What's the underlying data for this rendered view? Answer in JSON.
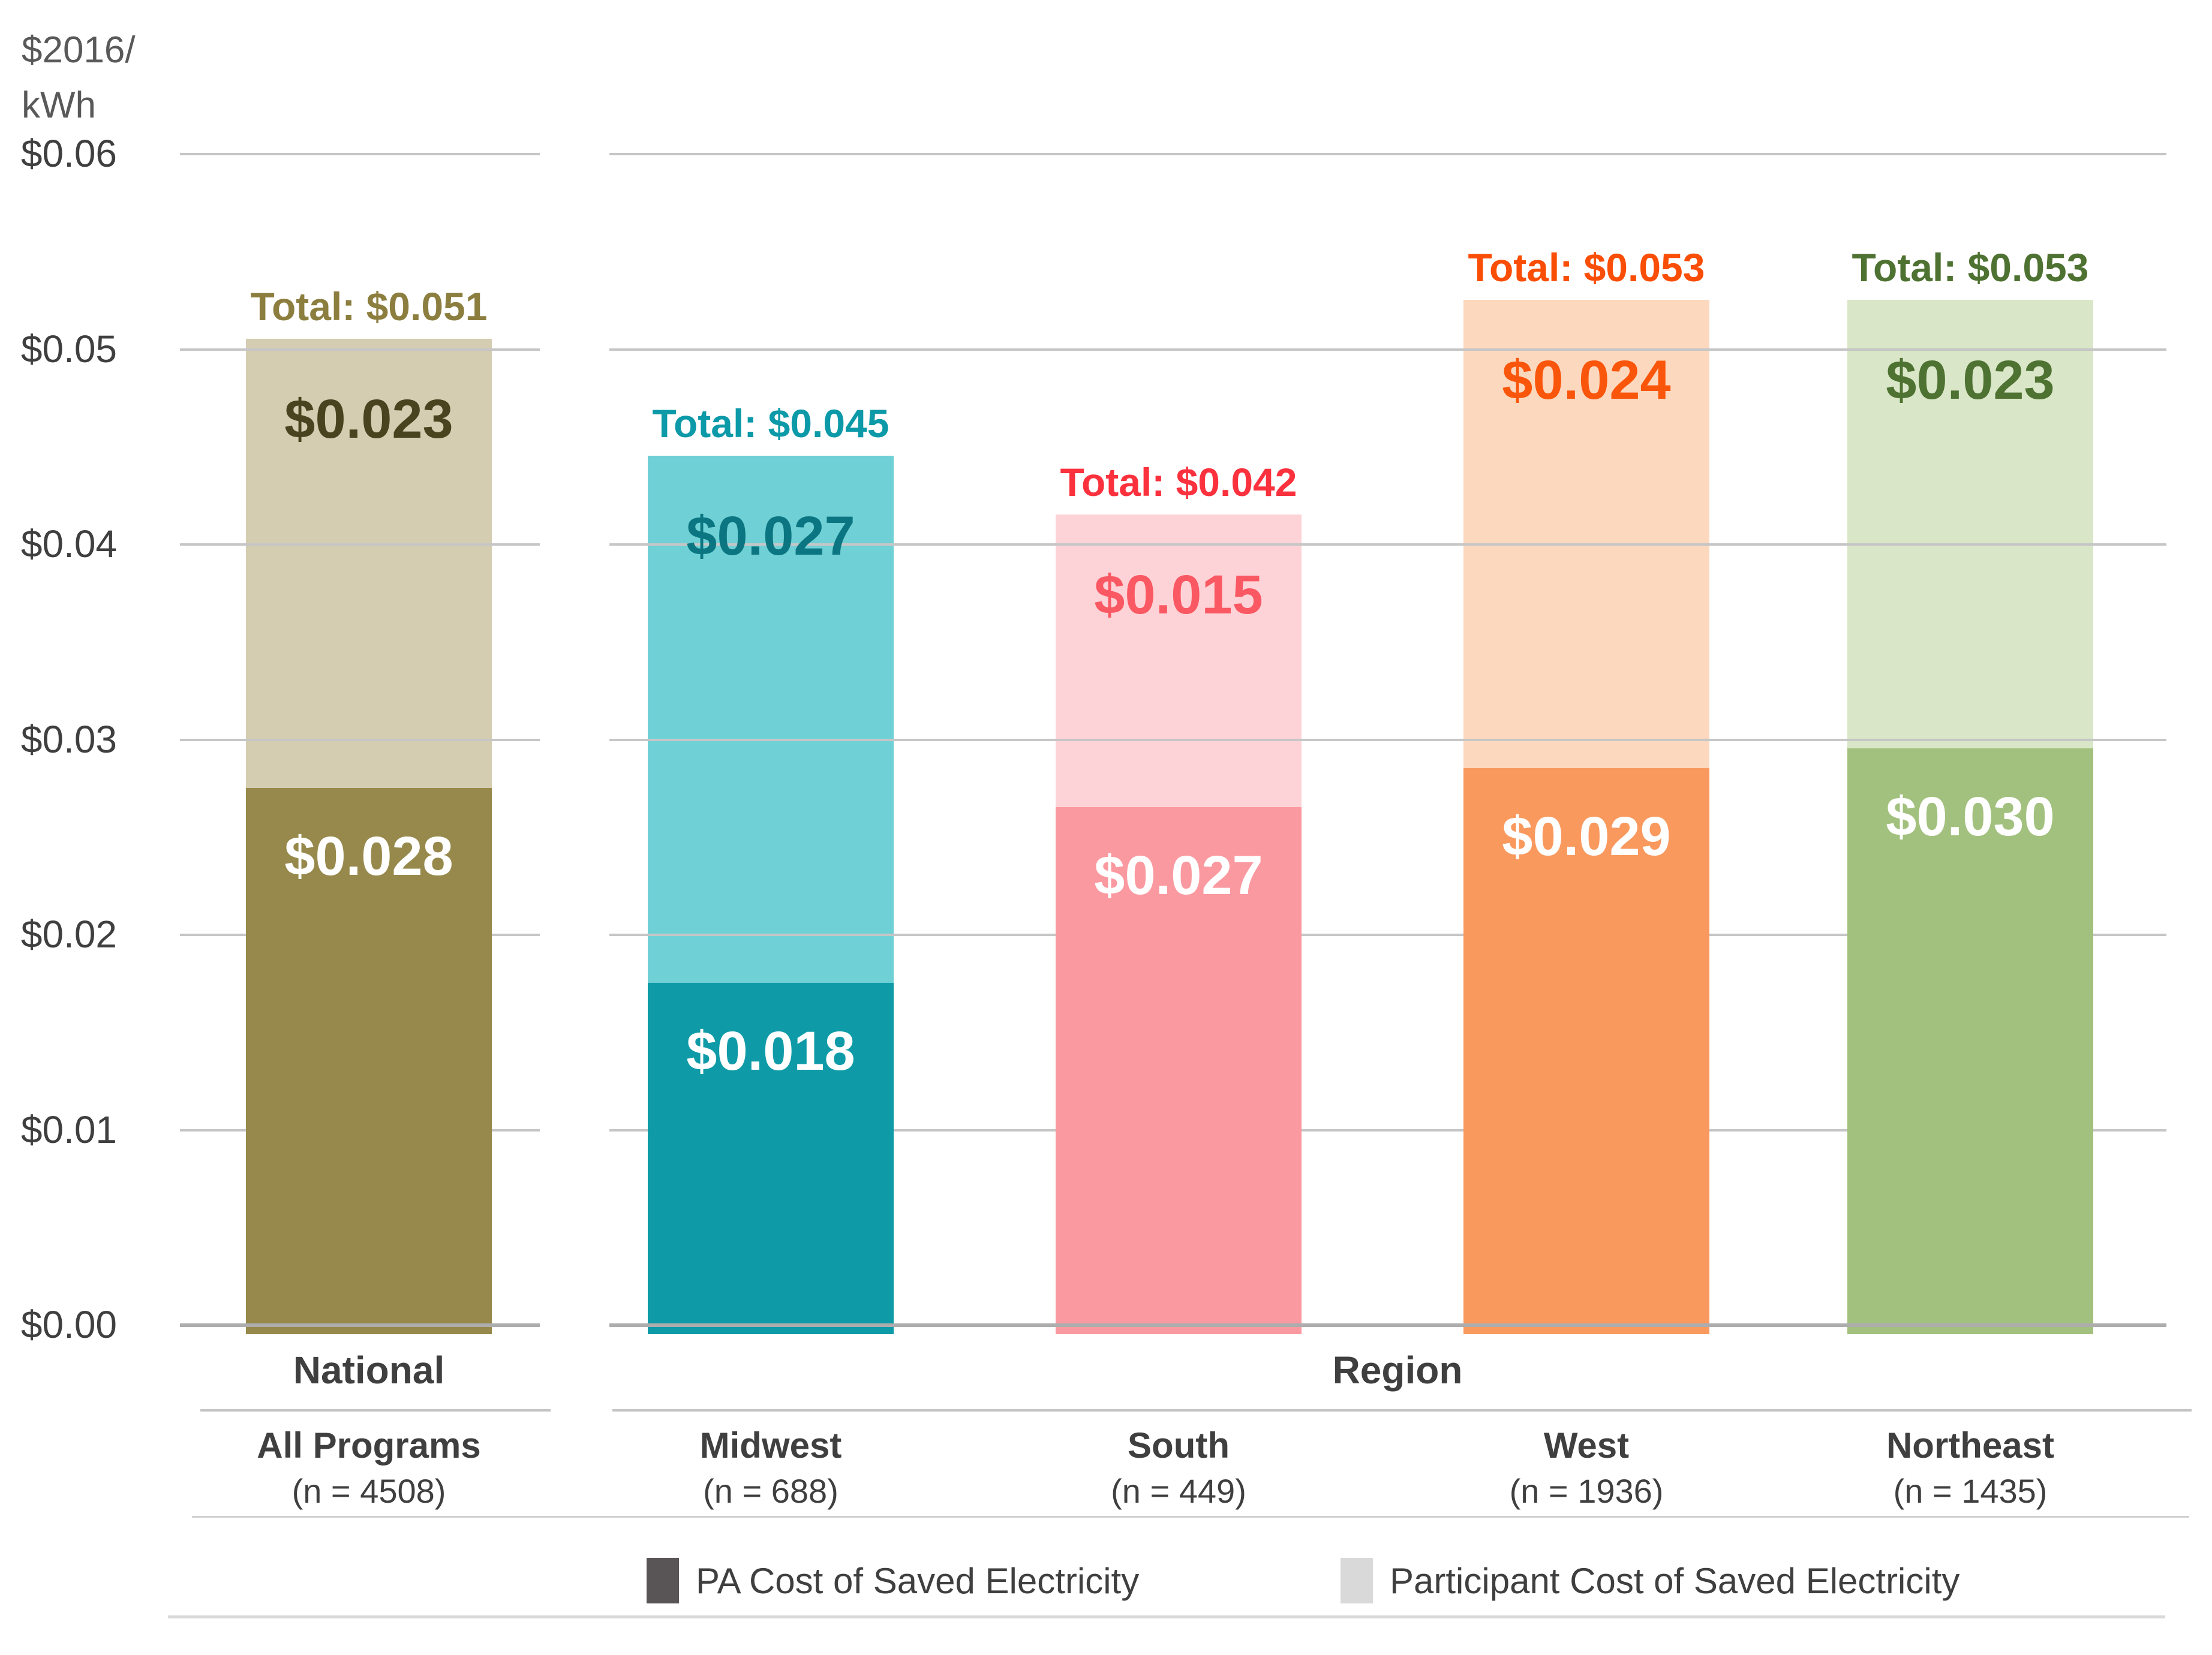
{
  "y_axis": {
    "unit_line1": "$2016/",
    "unit_line2": "kWh",
    "ticks": [
      "$0.06",
      "$0.05",
      "$0.04",
      "$0.03",
      "$0.02",
      "$0.01",
      "$0.00"
    ]
  },
  "sections": {
    "national": "National",
    "region": "Region"
  },
  "legend": {
    "items": [
      {
        "label": "PA Cost of Saved Electricity",
        "color": "#595455"
      },
      {
        "label": "Participant Cost of Saved Electricity",
        "color": "#D9D9D9"
      }
    ]
  },
  "chart_data": {
    "type": "bar",
    "stacked": true,
    "ylabel": "$2016/kWh",
    "ylim": [
      0,
      0.06
    ],
    "ytick_step": 0.01,
    "grid": true,
    "legend_position": "bottom",
    "series_names": [
      "PA Cost of Saved Electricity",
      "Participant Cost of Saved Electricity"
    ],
    "categories": [
      "All Programs",
      "Midwest",
      "South",
      "West",
      "Northeast"
    ],
    "groups": [
      {
        "section": "National",
        "category": "All Programs",
        "n_label": "(n = 4508)",
        "pa": 0.028,
        "participant": 0.023,
        "total": 0.051,
        "pa_label": "$0.028",
        "participant_label": "$0.023",
        "total_label": "Total: $0.051",
        "color_dark": "#97894B",
        "color_light": "#D5CDB1",
        "color_total_text": "#8C7E3E",
        "color_participant_text": "#49431F"
      },
      {
        "section": "Region",
        "category": "Midwest",
        "n_label": "(n = 688)",
        "pa": 0.018,
        "participant": 0.027,
        "total": 0.045,
        "pa_label": "$0.018",
        "participant_label": "$0.027",
        "total_label": "Total: $0.045",
        "color_dark": "#0E9BA7",
        "color_light": "#6FD0D6",
        "color_total_text": "#0C99A8",
        "color_participant_text": "#0B7681"
      },
      {
        "section": "Region",
        "category": "South",
        "n_label": "(n = 449)",
        "pa": 0.027,
        "participant": 0.015,
        "total": 0.042,
        "pa_label": "$0.027",
        "participant_label": "$0.015",
        "total_label": "Total: $0.042",
        "color_dark": "#FB99A0",
        "color_light": "#FDD3D7",
        "color_total_text": "#FB323E",
        "color_participant_text": "#FA5862"
      },
      {
        "section": "Region",
        "category": "West",
        "n_label": "(n = 1936)",
        "pa": 0.029,
        "participant": 0.024,
        "total": 0.053,
        "pa_label": "$0.029",
        "participant_label": "$0.024",
        "total_label": "Total: $0.053",
        "color_dark": "#F9995E",
        "color_light": "#FCD8BE",
        "color_total_text": "#FA4D05",
        "color_participant_text": "#FA560B"
      },
      {
        "section": "Region",
        "category": "Northeast",
        "n_label": "(n = 1435)",
        "pa": 0.03,
        "participant": 0.023,
        "total": 0.053,
        "pa_label": "$0.030",
        "participant_label": "$0.023",
        "total_label": "Total: $0.053",
        "color_dark": "#A3C17E",
        "color_light": "#D9E6C7",
        "color_total_text": "#4E7231",
        "color_participant_text": "#4E7231"
      }
    ]
  }
}
